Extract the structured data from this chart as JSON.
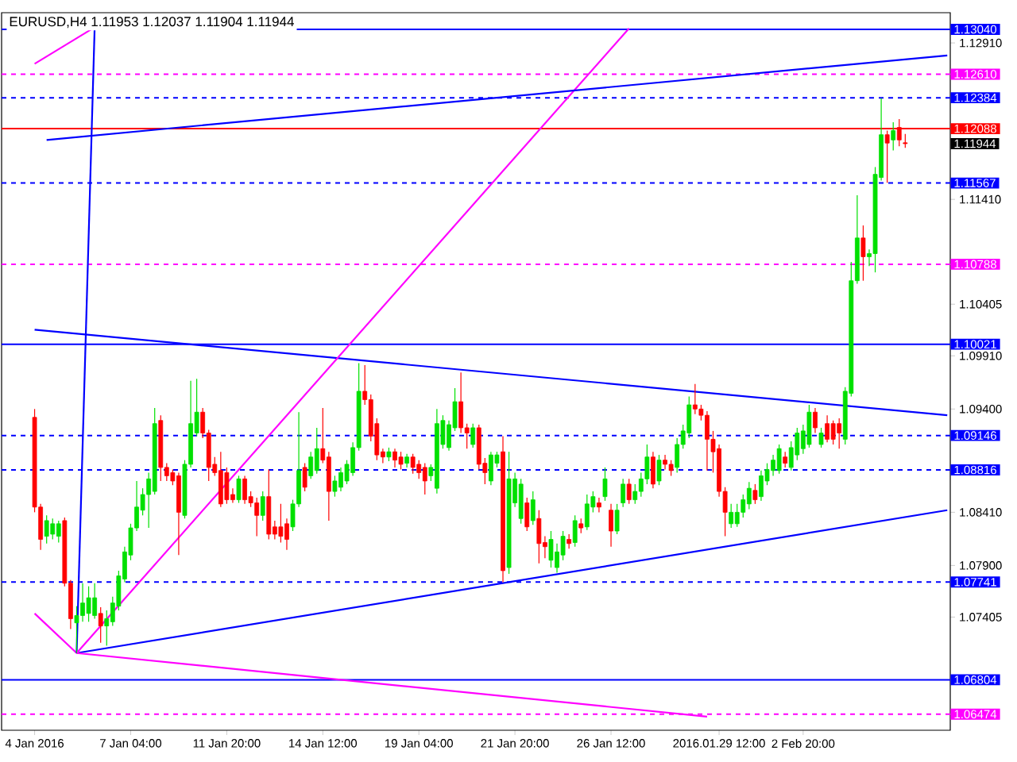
{
  "chart_data": {
    "type": "candlestick",
    "title": "EURUSD,H4  1.11953 1.12037 1.11904 1.11944",
    "categories": [
      "4 Jan 2016",
      null,
      null,
      null,
      null,
      null,
      null,
      null,
      null,
      null,
      null,
      null,
      null,
      null,
      null,
      null,
      "7 Jan 04:00",
      null,
      null,
      null,
      null,
      null,
      null,
      null,
      null,
      null,
      null,
      null,
      null,
      null,
      null,
      null,
      "11 Jan 20:00",
      null,
      null,
      null,
      null,
      null,
      null,
      null,
      null,
      null,
      null,
      null,
      null,
      null,
      null,
      null,
      "14 Jan 12:00",
      null,
      null,
      null,
      null,
      null,
      null,
      null,
      null,
      null,
      null,
      null,
      null,
      null,
      null,
      null,
      "19 Jan 04:00",
      null,
      null,
      null,
      null,
      null,
      null,
      null,
      null,
      null,
      null,
      null,
      null,
      null,
      null,
      null,
      "21 Jan 20:00",
      null,
      null,
      null,
      null,
      null,
      null,
      null,
      null,
      null,
      null,
      null,
      null,
      null,
      null,
      null,
      "26 Jan 12:00",
      null,
      null,
      null,
      null,
      null,
      null,
      null,
      null,
      null,
      null,
      null,
      null,
      null,
      null,
      null,
      null,
      null,
      "2016.01.29 12:00",
      null,
      null,
      null,
      null,
      null,
      null,
      null,
      null,
      null,
      null,
      null,
      null,
      null,
      "2 Feb 20:00",
      null,
      null,
      null,
      null,
      null,
      null,
      null,
      null,
      null,
      null,
      null,
      null,
      null,
      null,
      null,
      null,
      null,
      null,
      null,
      null,
      null,
      null,
      null,
      null
    ],
    "ohlc": [
      [
        1.0932,
        1.094,
        1.0841,
        1.0846
      ],
      [
        1.0846,
        1.0849,
        1.0805,
        1.0815
      ],
      [
        1.0818,
        1.0838,
        1.0811,
        1.0833
      ],
      [
        1.082,
        1.0835,
        1.0815,
        1.083
      ],
      [
        1.0818,
        1.0833,
        1.0812,
        1.083
      ],
      [
        1.0833,
        1.0836,
        1.077,
        1.0773
      ],
      [
        1.0773,
        1.0776,
        1.0729,
        1.0739
      ],
      [
        1.0735,
        1.0751,
        1.0706,
        1.0742
      ],
      [
        1.0742,
        1.0773,
        1.0736,
        1.0754
      ],
      [
        1.0744,
        1.077,
        1.0736,
        1.0759
      ],
      [
        1.0742,
        1.0773,
        1.0739,
        1.0759
      ],
      [
        1.0744,
        1.075,
        1.0716,
        1.0732
      ],
      [
        1.0732,
        1.0747,
        1.0713,
        1.0739
      ],
      [
        1.0736,
        1.076,
        1.0732,
        1.0754
      ],
      [
        1.0751,
        1.0785,
        1.0747,
        1.078
      ],
      [
        1.0777,
        1.0808,
        1.0774,
        1.0803
      ],
      [
        1.08,
        1.083,
        1.0795,
        1.0826
      ],
      [
        1.0826,
        1.0871,
        1.0823,
        1.0846
      ],
      [
        1.0843,
        1.0864,
        1.0838,
        1.0858
      ],
      [
        1.0858,
        1.0879,
        1.0826,
        1.0873
      ],
      [
        1.0861,
        1.0941,
        1.0858,
        1.0926
      ],
      [
        1.0929,
        1.0934,
        1.0871,
        1.0884
      ],
      [
        1.0884,
        1.0888,
        1.0871,
        1.0876
      ],
      [
        1.0879,
        1.0882,
        1.0867,
        1.0871
      ],
      [
        1.0876,
        1.0879,
        1.08,
        1.0841
      ],
      [
        1.0838,
        1.0891,
        1.0835,
        1.0887
      ],
      [
        1.0887,
        1.0967,
        1.0884,
        1.0926
      ],
      [
        1.0917,
        1.0969,
        1.0914,
        1.0937
      ],
      [
        1.0937,
        1.0941,
        1.0912,
        1.0917
      ],
      [
        1.0917,
        1.092,
        1.0871,
        1.0884
      ],
      [
        1.0887,
        1.0894,
        1.0876,
        1.0879
      ],
      [
        1.0881,
        1.0899,
        1.0846,
        1.0849
      ],
      [
        1.0879,
        1.0884,
        1.0849,
        1.0853
      ],
      [
        1.0858,
        1.0864,
        1.085,
        1.0853
      ],
      [
        1.0853,
        1.0876,
        1.085,
        1.0873
      ],
      [
        1.0873,
        1.0876,
        1.0849,
        1.0853
      ],
      [
        1.0856,
        1.0861,
        1.0846,
        1.085
      ],
      [
        1.085,
        1.0855,
        1.0818,
        1.0838
      ],
      [
        1.0838,
        1.0861,
        1.0833,
        1.0856
      ],
      [
        1.0856,
        1.0882,
        1.0815,
        1.082
      ],
      [
        1.0827,
        1.0833,
        1.0815,
        1.082
      ],
      [
        1.0827,
        1.0849,
        1.0812,
        1.0818
      ],
      [
        1.083,
        1.0835,
        1.0805,
        1.0815
      ],
      [
        1.0827,
        1.0853,
        1.0823,
        1.0849
      ],
      [
        1.0849,
        1.0937,
        1.0846,
        1.0881
      ],
      [
        1.0884,
        1.0888,
        1.0861,
        1.0865
      ],
      [
        1.0876,
        1.0899,
        1.0873,
        1.0894
      ],
      [
        1.0881,
        1.0922,
        1.0878,
        1.0902
      ],
      [
        1.0902,
        1.0941,
        1.0888,
        1.0891
      ],
      [
        1.0894,
        1.0899,
        1.0833,
        1.0861
      ],
      [
        1.0861,
        1.0876,
        1.0856,
        1.0871
      ],
      [
        1.0865,
        1.0884,
        1.0861,
        1.0879
      ],
      [
        1.0871,
        1.0891,
        1.0868,
        1.0887
      ],
      [
        1.0879,
        1.0908,
        1.0876,
        1.0903
      ],
      [
        1.0903,
        1.0984,
        1.09,
        1.0957
      ],
      [
        1.0957,
        1.0982,
        1.0944,
        1.0949
      ],
      [
        1.0949,
        1.0954,
        1.0909,
        1.0914
      ],
      [
        1.0926,
        1.0931,
        1.0891,
        1.0896
      ],
      [
        1.0899,
        1.0902,
        1.0888,
        1.0894
      ],
      [
        1.0894,
        1.0903,
        1.089,
        1.0899
      ],
      [
        1.0899,
        1.0902,
        1.0884,
        1.0891
      ],
      [
        1.0894,
        1.0899,
        1.0882,
        1.0887
      ],
      [
        1.0888,
        1.0897,
        1.0884,
        1.0894
      ],
      [
        1.0894,
        1.0897,
        1.0878,
        1.0884
      ],
      [
        1.0887,
        1.0891,
        1.0873,
        1.0879
      ],
      [
        1.0884,
        1.0888,
        1.0858,
        1.0871
      ],
      [
        1.0876,
        1.0887,
        1.0871,
        1.0884
      ],
      [
        1.0864,
        1.094,
        1.0859,
        1.0926
      ],
      [
        1.0906,
        1.0934,
        1.0902,
        1.0929
      ],
      [
        1.0903,
        1.0929,
        1.09,
        1.0925
      ],
      [
        1.0922,
        1.096,
        1.0919,
        1.0947
      ],
      [
        1.0947,
        1.0975,
        1.0917,
        1.0922
      ],
      [
        1.0922,
        1.0926,
        1.0902,
        1.0917
      ],
      [
        1.0906,
        1.0926,
        1.0903,
        1.0922
      ],
      [
        1.0922,
        1.0925,
        1.0882,
        1.0887
      ],
      [
        1.0888,
        1.0893,
        1.0868,
        1.0879
      ],
      [
        1.0871,
        1.0899,
        1.0867,
        1.0896
      ],
      [
        1.0888,
        1.0899,
        1.0884,
        1.0896
      ],
      [
        1.0899,
        1.0914,
        1.0774,
        1.0785
      ],
      [
        1.0788,
        1.0899,
        1.0782,
        1.0873
      ],
      [
        1.085,
        1.0879,
        1.0846,
        1.0873
      ],
      [
        1.0835,
        1.0873,
        1.083,
        1.0868
      ],
      [
        1.085,
        1.0855,
        1.0823,
        1.0827
      ],
      [
        1.0833,
        1.0861,
        1.0829,
        1.0853
      ],
      [
        1.0835,
        1.0843,
        1.0792,
        1.0811
      ],
      [
        1.0812,
        1.0818,
        1.0797,
        1.0808
      ],
      [
        1.0795,
        1.0823,
        1.0788,
        1.0815
      ],
      [
        1.0788,
        1.0811,
        1.0783,
        1.0803
      ],
      [
        1.08,
        1.0823,
        1.0795,
        1.0818
      ],
      [
        1.0815,
        1.082,
        1.0806,
        1.0811
      ],
      [
        1.0812,
        1.0838,
        1.0808,
        1.0833
      ],
      [
        1.083,
        1.0835,
        1.0821,
        1.0826
      ],
      [
        1.0827,
        1.0858,
        1.0824,
        1.0849
      ],
      [
        1.0846,
        1.0861,
        1.0841,
        1.0856
      ],
      [
        1.085,
        1.0855,
        1.0841,
        1.0846
      ],
      [
        1.0856,
        1.0884,
        1.0852,
        1.0873
      ],
      [
        1.0843,
        1.0849,
        1.0808,
        1.0823
      ],
      [
        1.0823,
        1.0849,
        1.082,
        1.0843
      ],
      [
        1.085,
        1.0873,
        1.0846,
        1.0868
      ],
      [
        1.0868,
        1.0873,
        1.0849,
        1.0853
      ],
      [
        1.0853,
        1.0868,
        1.0849,
        1.0861
      ],
      [
        1.0861,
        1.0879,
        1.0856,
        1.0873
      ],
      [
        1.0873,
        1.0906,
        1.0868,
        1.0894
      ],
      [
        1.0894,
        1.0899,
        1.0864,
        1.0868
      ],
      [
        1.0871,
        1.0896,
        1.0867,
        1.0891
      ],
      [
        1.0891,
        1.0896,
        1.0882,
        1.0887
      ],
      [
        1.0887,
        1.0891,
        1.0876,
        1.0881
      ],
      [
        1.0884,
        1.0912,
        1.0879,
        1.0906
      ],
      [
        1.0906,
        1.0925,
        1.0902,
        1.0919
      ],
      [
        1.0917,
        1.0952,
        1.0912,
        1.0944
      ],
      [
        1.0944,
        1.0964,
        1.0935,
        1.094
      ],
      [
        1.094,
        1.0944,
        1.0929,
        1.0934
      ],
      [
        1.0934,
        1.0938,
        1.0881,
        1.0911
      ],
      [
        1.0911,
        1.0919,
        1.0879,
        1.0899
      ],
      [
        1.0902,
        1.0906,
        1.0856,
        1.0861
      ],
      [
        1.0861,
        1.0865,
        1.0818,
        1.0841
      ],
      [
        1.083,
        1.0849,
        1.0826,
        1.0841
      ],
      [
        1.083,
        1.0849,
        1.0827,
        1.0841
      ],
      [
        1.0841,
        1.0858,
        1.0836,
        1.0853
      ],
      [
        1.0849,
        1.087,
        1.0844,
        1.0864
      ],
      [
        1.0862,
        1.0868,
        1.0849,
        1.0853
      ],
      [
        1.0856,
        1.0881,
        1.0852,
        1.0876
      ],
      [
        1.0871,
        1.0888,
        1.0867,
        1.0882
      ],
      [
        1.0881,
        1.0896,
        1.0876,
        1.0891
      ],
      [
        1.0881,
        1.0906,
        1.0878,
        1.0902
      ],
      [
        1.0894,
        1.0899,
        1.0884,
        1.0888
      ],
      [
        1.0884,
        1.0909,
        1.0881,
        1.0903
      ],
      [
        1.0896,
        1.0922,
        1.0891,
        1.0917
      ],
      [
        1.0902,
        1.0925,
        1.0897,
        1.0919
      ],
      [
        1.0906,
        1.0944,
        1.0903,
        1.0937
      ],
      [
        1.0937,
        1.0941,
        1.0917,
        1.0922
      ],
      [
        1.0906,
        1.0922,
        1.0903,
        1.0917
      ],
      [
        1.0926,
        1.0934,
        1.0908,
        1.0911
      ],
      [
        1.0926,
        1.0929,
        1.0906,
        1.0911
      ],
      [
        1.0926,
        1.0931,
        1.0902,
        1.0917
      ],
      [
        1.0911,
        1.0961,
        1.0906,
        1.0957
      ],
      [
        1.0955,
        1.1081,
        1.0952,
        1.1063
      ],
      [
        1.1063,
        1.1145,
        1.106,
        1.1104
      ],
      [
        1.1104,
        1.1116,
        1.1063,
        1.1086
      ],
      [
        1.1086,
        1.1093,
        1.1077,
        1.1089
      ],
      [
        1.1089,
        1.1172,
        1.1071,
        1.1165
      ],
      [
        1.1162,
        1.1238,
        1.1159,
        1.1203
      ],
      [
        1.1203,
        1.1207,
        1.1157,
        1.1195
      ],
      [
        1.1198,
        1.1215,
        1.1188,
        1.1207
      ],
      [
        1.121,
        1.1218,
        1.1192,
        1.1198
      ],
      [
        1.11953,
        1.12037,
        1.11904,
        1.11944
      ],
      null,
      null,
      null,
      null,
      null,
      null,
      null
    ],
    "series": [
      {
        "type": "line",
        "color": "#0000ff",
        "line_style": "solid",
        "values": [
          1.1016,
          null,
          null,
          null,
          null,
          null,
          null,
          null,
          null,
          null,
          null,
          null,
          null,
          null,
          null,
          null,
          null,
          null,
          null,
          null,
          null,
          null,
          null,
          null,
          null,
          null,
          null,
          null,
          null,
          null,
          null,
          null,
          null,
          null,
          null,
          null,
          null,
          null,
          null,
          null,
          null,
          null,
          null,
          null,
          null,
          null,
          null,
          null,
          null,
          null,
          null,
          null,
          null,
          null,
          null,
          null,
          null,
          null,
          null,
          null,
          null,
          null,
          null,
          null,
          null,
          null,
          null,
          null,
          null,
          null,
          null,
          null,
          null,
          null,
          null,
          null,
          null,
          null,
          null,
          null,
          null,
          null,
          null,
          null,
          null,
          null,
          null,
          null,
          null,
          null,
          null,
          null,
          null,
          null,
          null,
          null,
          null,
          null,
          null,
          null,
          null,
          null,
          null,
          null,
          null,
          null,
          null,
          null,
          null,
          null,
          null,
          null,
          null,
          null,
          null,
          null,
          null,
          null,
          null,
          null,
          null,
          null,
          null,
          null,
          null,
          null,
          null,
          null,
          null,
          null,
          null,
          null,
          null,
          null,
          null,
          null,
          null,
          null,
          null,
          null,
          null,
          null,
          null,
          null,
          null,
          null,
          null,
          null,
          null,
          null,
          null,
          null,
          1.0934
        ]
      },
      {
        "type": "line",
        "color": "#0000ff",
        "line_style": "solid",
        "values": [
          null,
          null,
          null,
          null,
          null,
          null,
          null,
          1.0706,
          null,
          null,
          null,
          null,
          null,
          null,
          null,
          null,
          null,
          null,
          null,
          null,
          null,
          null,
          null,
          null,
          null,
          null,
          null,
          null,
          null,
          null,
          null,
          null,
          null,
          null,
          null,
          null,
          null,
          null,
          null,
          null,
          null,
          null,
          null,
          null,
          null,
          null,
          null,
          null,
          null,
          null,
          null,
          null,
          null,
          null,
          null,
          null,
          null,
          null,
          null,
          null,
          null,
          null,
          null,
          null,
          null,
          null,
          null,
          null,
          null,
          null,
          null,
          null,
          null,
          null,
          null,
          null,
          null,
          null,
          null,
          null,
          null,
          null,
          null,
          null,
          null,
          null,
          null,
          null,
          null,
          null,
          null,
          null,
          null,
          null,
          null,
          null,
          null,
          null,
          null,
          null,
          null,
          null,
          null,
          null,
          null,
          null,
          null,
          null,
          null,
          null,
          null,
          null,
          null,
          null,
          null,
          null,
          null,
          null,
          null,
          null,
          null,
          null,
          null,
          null,
          null,
          null,
          null,
          null,
          null,
          null,
          null,
          null,
          null,
          null,
          null,
          null,
          null,
          null,
          null,
          null,
          null,
          null,
          null,
          null,
          null,
          null,
          null,
          null,
          null,
          null,
          null,
          null,
          1.0843
        ]
      },
      {
        "type": "line",
        "color": "#ff00ff",
        "line_style": "solid",
        "values": [
          1.0744,
          null,
          null,
          null,
          null,
          null,
          null,
          1.0706,
          null,
          null,
          null,
          null,
          null,
          null,
          null,
          null,
          null,
          null,
          null,
          null,
          null,
          null,
          null,
          null,
          null,
          null,
          null,
          null,
          null,
          null,
          null,
          null,
          null,
          null,
          null,
          null,
          null,
          null,
          null,
          null,
          null,
          null,
          null,
          null,
          null,
          null,
          null,
          null,
          null,
          null,
          null,
          null,
          null,
          null,
          null,
          null,
          null,
          null,
          null,
          null,
          null,
          null,
          null,
          null,
          null,
          null,
          null,
          null,
          null,
          null,
          null,
          null,
          null,
          null,
          null,
          null,
          null,
          null,
          null,
          null,
          null,
          null,
          null,
          null,
          null,
          null,
          null,
          null,
          null,
          null,
          null,
          null,
          null,
          null,
          null,
          null,
          null,
          null,
          null,
          null,
          null,
          null,
          null,
          null,
          null,
          null,
          null,
          null,
          null,
          null,
          null,
          null,
          1.0645,
          null,
          null,
          null,
          null,
          null,
          null,
          null,
          null,
          null,
          null,
          null,
          null,
          null,
          null,
          null,
          null,
          null,
          null,
          null,
          null,
          null,
          null,
          null,
          null,
          null,
          null,
          null,
          null,
          null,
          null,
          null,
          null,
          null,
          null,
          null,
          null,
          null,
          null,
          null,
          null
        ]
      },
      {
        "type": "line",
        "color": "#0000ff",
        "line_style": "solid",
        "values": [
          null,
          null,
          null,
          null,
          null,
          null,
          null,
          1.0706,
          null,
          null,
          1.1306,
          null,
          null,
          null,
          null,
          null,
          null,
          null,
          null,
          null,
          null,
          null,
          null,
          null,
          null,
          null,
          null,
          null,
          null,
          null,
          null,
          null,
          null,
          null,
          null,
          null,
          null,
          null,
          null,
          null,
          null,
          null,
          null,
          null,
          null,
          null,
          null,
          null,
          null,
          null,
          null,
          null,
          null,
          null,
          null,
          null,
          null,
          null,
          null,
          null,
          null,
          null,
          null,
          null,
          null,
          null,
          null,
          null,
          null,
          null,
          null,
          null,
          null,
          null,
          null,
          null,
          null,
          null,
          null,
          null,
          null,
          null,
          null,
          null,
          null,
          null,
          null,
          null,
          null,
          null,
          null,
          null,
          null,
          null,
          null,
          null,
          null,
          null,
          null,
          null,
          null,
          null,
          null,
          null,
          null,
          null,
          null,
          null,
          null,
          null,
          null,
          null,
          null,
          null,
          null,
          null,
          null,
          null,
          null,
          null,
          null,
          null,
          null,
          null,
          null,
          null,
          null,
          null,
          null,
          null,
          null,
          null,
          null,
          null,
          null,
          null,
          null,
          null,
          null,
          null,
          null,
          null,
          null,
          null,
          null,
          null,
          null,
          null,
          null,
          null,
          null,
          null,
          null
        ]
      },
      {
        "type": "line",
        "color": "#ff00ff",
        "line_style": "solid",
        "values": [
          null,
          null,
          null,
          null,
          null,
          null,
          null,
          1.0706,
          null,
          null,
          null,
          null,
          null,
          null,
          null,
          null,
          null,
          null,
          null,
          null,
          null,
          null,
          null,
          null,
          null,
          null,
          null,
          null,
          null,
          null,
          null,
          null,
          null,
          null,
          null,
          null,
          null,
          null,
          null,
          null,
          null,
          null,
          null,
          null,
          null,
          null,
          null,
          null,
          null,
          null,
          null,
          null,
          null,
          null,
          null,
          null,
          null,
          null,
          null,
          null,
          null,
          null,
          null,
          null,
          null,
          null,
          null,
          null,
          null,
          null,
          null,
          null,
          null,
          null,
          null,
          null,
          null,
          null,
          null,
          null,
          null,
          null,
          null,
          null,
          null,
          null,
          null,
          null,
          null,
          null,
          null,
          null,
          null,
          null,
          null,
          null,
          null,
          null,
          null,
          1.1305,
          null,
          null,
          null,
          null,
          null,
          null,
          null,
          null,
          null,
          null,
          null,
          null,
          null,
          null,
          null,
          null,
          null,
          null,
          null,
          null,
          null,
          null,
          null,
          null,
          null,
          null,
          null,
          null,
          null,
          null,
          null,
          null,
          null,
          null,
          null,
          null,
          null,
          null,
          null,
          null,
          null,
          null,
          null,
          null,
          null,
          null,
          null,
          null,
          null,
          null,
          null,
          null,
          null
        ]
      },
      {
        "type": "line",
        "color": "#ff00ff",
        "line_style": "solid",
        "values": [
          1.1271,
          null,
          null,
          null,
          null,
          null,
          null,
          null,
          null,
          null,
          1.1306,
          null,
          null,
          null,
          null,
          null,
          null,
          null,
          null,
          null,
          null,
          null,
          null,
          null,
          null,
          null,
          null,
          null,
          null,
          null,
          null,
          null,
          null,
          null,
          null,
          null,
          null,
          null,
          null,
          null,
          null,
          null,
          null,
          null,
          null,
          null,
          null,
          null,
          null,
          null,
          null,
          null,
          null,
          null,
          null,
          null,
          null,
          null,
          null,
          null,
          null,
          null,
          null,
          null,
          null,
          null,
          null,
          null,
          null,
          null,
          null,
          null,
          null,
          null,
          null,
          null,
          null,
          null,
          null,
          null,
          null,
          null,
          null,
          null,
          null,
          null,
          null,
          null,
          null,
          null,
          null,
          null,
          null,
          null,
          null,
          null,
          null,
          null,
          null,
          null,
          null,
          null,
          null,
          null,
          null,
          null,
          null,
          null,
          null,
          null,
          null,
          null,
          null,
          null,
          null,
          null,
          null,
          null,
          null,
          null,
          null,
          null,
          null,
          null,
          null,
          null,
          null,
          null,
          null,
          null,
          null,
          null,
          null,
          null,
          null,
          null,
          null,
          null,
          null,
          null,
          null,
          null,
          null,
          null,
          null,
          null,
          null,
          null,
          null,
          null,
          null,
          null,
          null
        ]
      },
      {
        "type": "line",
        "color": "#0000ff",
        "line_style": "solid",
        "values": [
          null,
          null,
          1.1198,
          null,
          null,
          null,
          null,
          null,
          null,
          null,
          null,
          null,
          null,
          null,
          null,
          null,
          null,
          null,
          null,
          null,
          null,
          null,
          null,
          null,
          null,
          null,
          null,
          null,
          null,
          null,
          null,
          null,
          null,
          null,
          null,
          null,
          null,
          null,
          null,
          null,
          null,
          null,
          null,
          null,
          null,
          null,
          null,
          null,
          null,
          null,
          null,
          null,
          null,
          null,
          null,
          null,
          null,
          null,
          null,
          null,
          null,
          null,
          null,
          null,
          null,
          null,
          null,
          null,
          null,
          null,
          null,
          null,
          null,
          null,
          null,
          null,
          null,
          null,
          null,
          null,
          null,
          null,
          null,
          null,
          null,
          null,
          null,
          null,
          null,
          null,
          null,
          null,
          null,
          null,
          null,
          null,
          null,
          null,
          null,
          null,
          null,
          null,
          null,
          null,
          null,
          null,
          null,
          null,
          null,
          null,
          null,
          null,
          null,
          null,
          null,
          null,
          null,
          null,
          null,
          null,
          null,
          null,
          null,
          null,
          null,
          null,
          null,
          null,
          null,
          null,
          null,
          null,
          null,
          null,
          null,
          null,
          null,
          null,
          null,
          null,
          null,
          null,
          null,
          null,
          null,
          null,
          null,
          null,
          null,
          null,
          null,
          null,
          1.1279
        ]
      }
    ],
    "annotations": [
      "1.11944"
    ],
    "ylim": [
      1.0632,
      1.132
    ],
    "yticks": [
      {
        "value": 1.1291,
        "label": "1.12910"
      },
      {
        "value": 1.1141,
        "label": "1.11410"
      },
      {
        "value": 1.10405,
        "label": "1.10405"
      },
      {
        "value": 1.0991,
        "label": "1.09910"
      },
      {
        "value": 1.094,
        "label": "1.09400"
      },
      {
        "value": 1.0841,
        "label": "1.08410"
      },
      {
        "value": 1.079,
        "label": "1.07900"
      },
      {
        "value": 1.07405,
        "label": "1.07405"
      }
    ],
    "ref_lines": [
      {
        "axis": "y",
        "value": 1.1304,
        "label": "1.13040",
        "color": "#0000ff",
        "line_style": "solid"
      },
      {
        "axis": "y",
        "value": 1.1261,
        "label": "1.12610",
        "color": "#ff00ff",
        "line_style": "dashed"
      },
      {
        "axis": "y",
        "value": 1.12384,
        "label": "1.12384",
        "color": "#0000ff",
        "line_style": "dashed"
      },
      {
        "axis": "y",
        "value": 1.12088,
        "label": "1.12088",
        "color": "#ff0000",
        "line_style": "solid"
      },
      {
        "axis": "y",
        "value": 1.11567,
        "label": "1.11567",
        "color": "#0000ff",
        "line_style": "dashed"
      },
      {
        "axis": "y",
        "value": 1.10788,
        "label": "1.10788",
        "color": "#ff00ff",
        "line_style": "dashed"
      },
      {
        "axis": "y",
        "value": 1.10021,
        "label": "1.10021",
        "color": "#0000ff",
        "line_style": "solid"
      },
      {
        "axis": "y",
        "value": 1.09146,
        "label": "1.09146",
        "color": "#0000ff",
        "line_style": "dashed"
      },
      {
        "axis": "y",
        "value": 1.08816,
        "label": "1.08816",
        "color": "#0000ff",
        "line_style": "dashed"
      },
      {
        "axis": "y",
        "value": 1.07741,
        "label": "1.07741",
        "color": "#0000ff",
        "line_style": "dashed"
      },
      {
        "axis": "y",
        "value": 1.06804,
        "label": "1.06804",
        "color": "#0000ff",
        "line_style": "solid"
      },
      {
        "axis": "y",
        "value": 1.06474,
        "label": "1.06474",
        "color": "#ff00ff",
        "line_style": "dashed"
      }
    ]
  }
}
